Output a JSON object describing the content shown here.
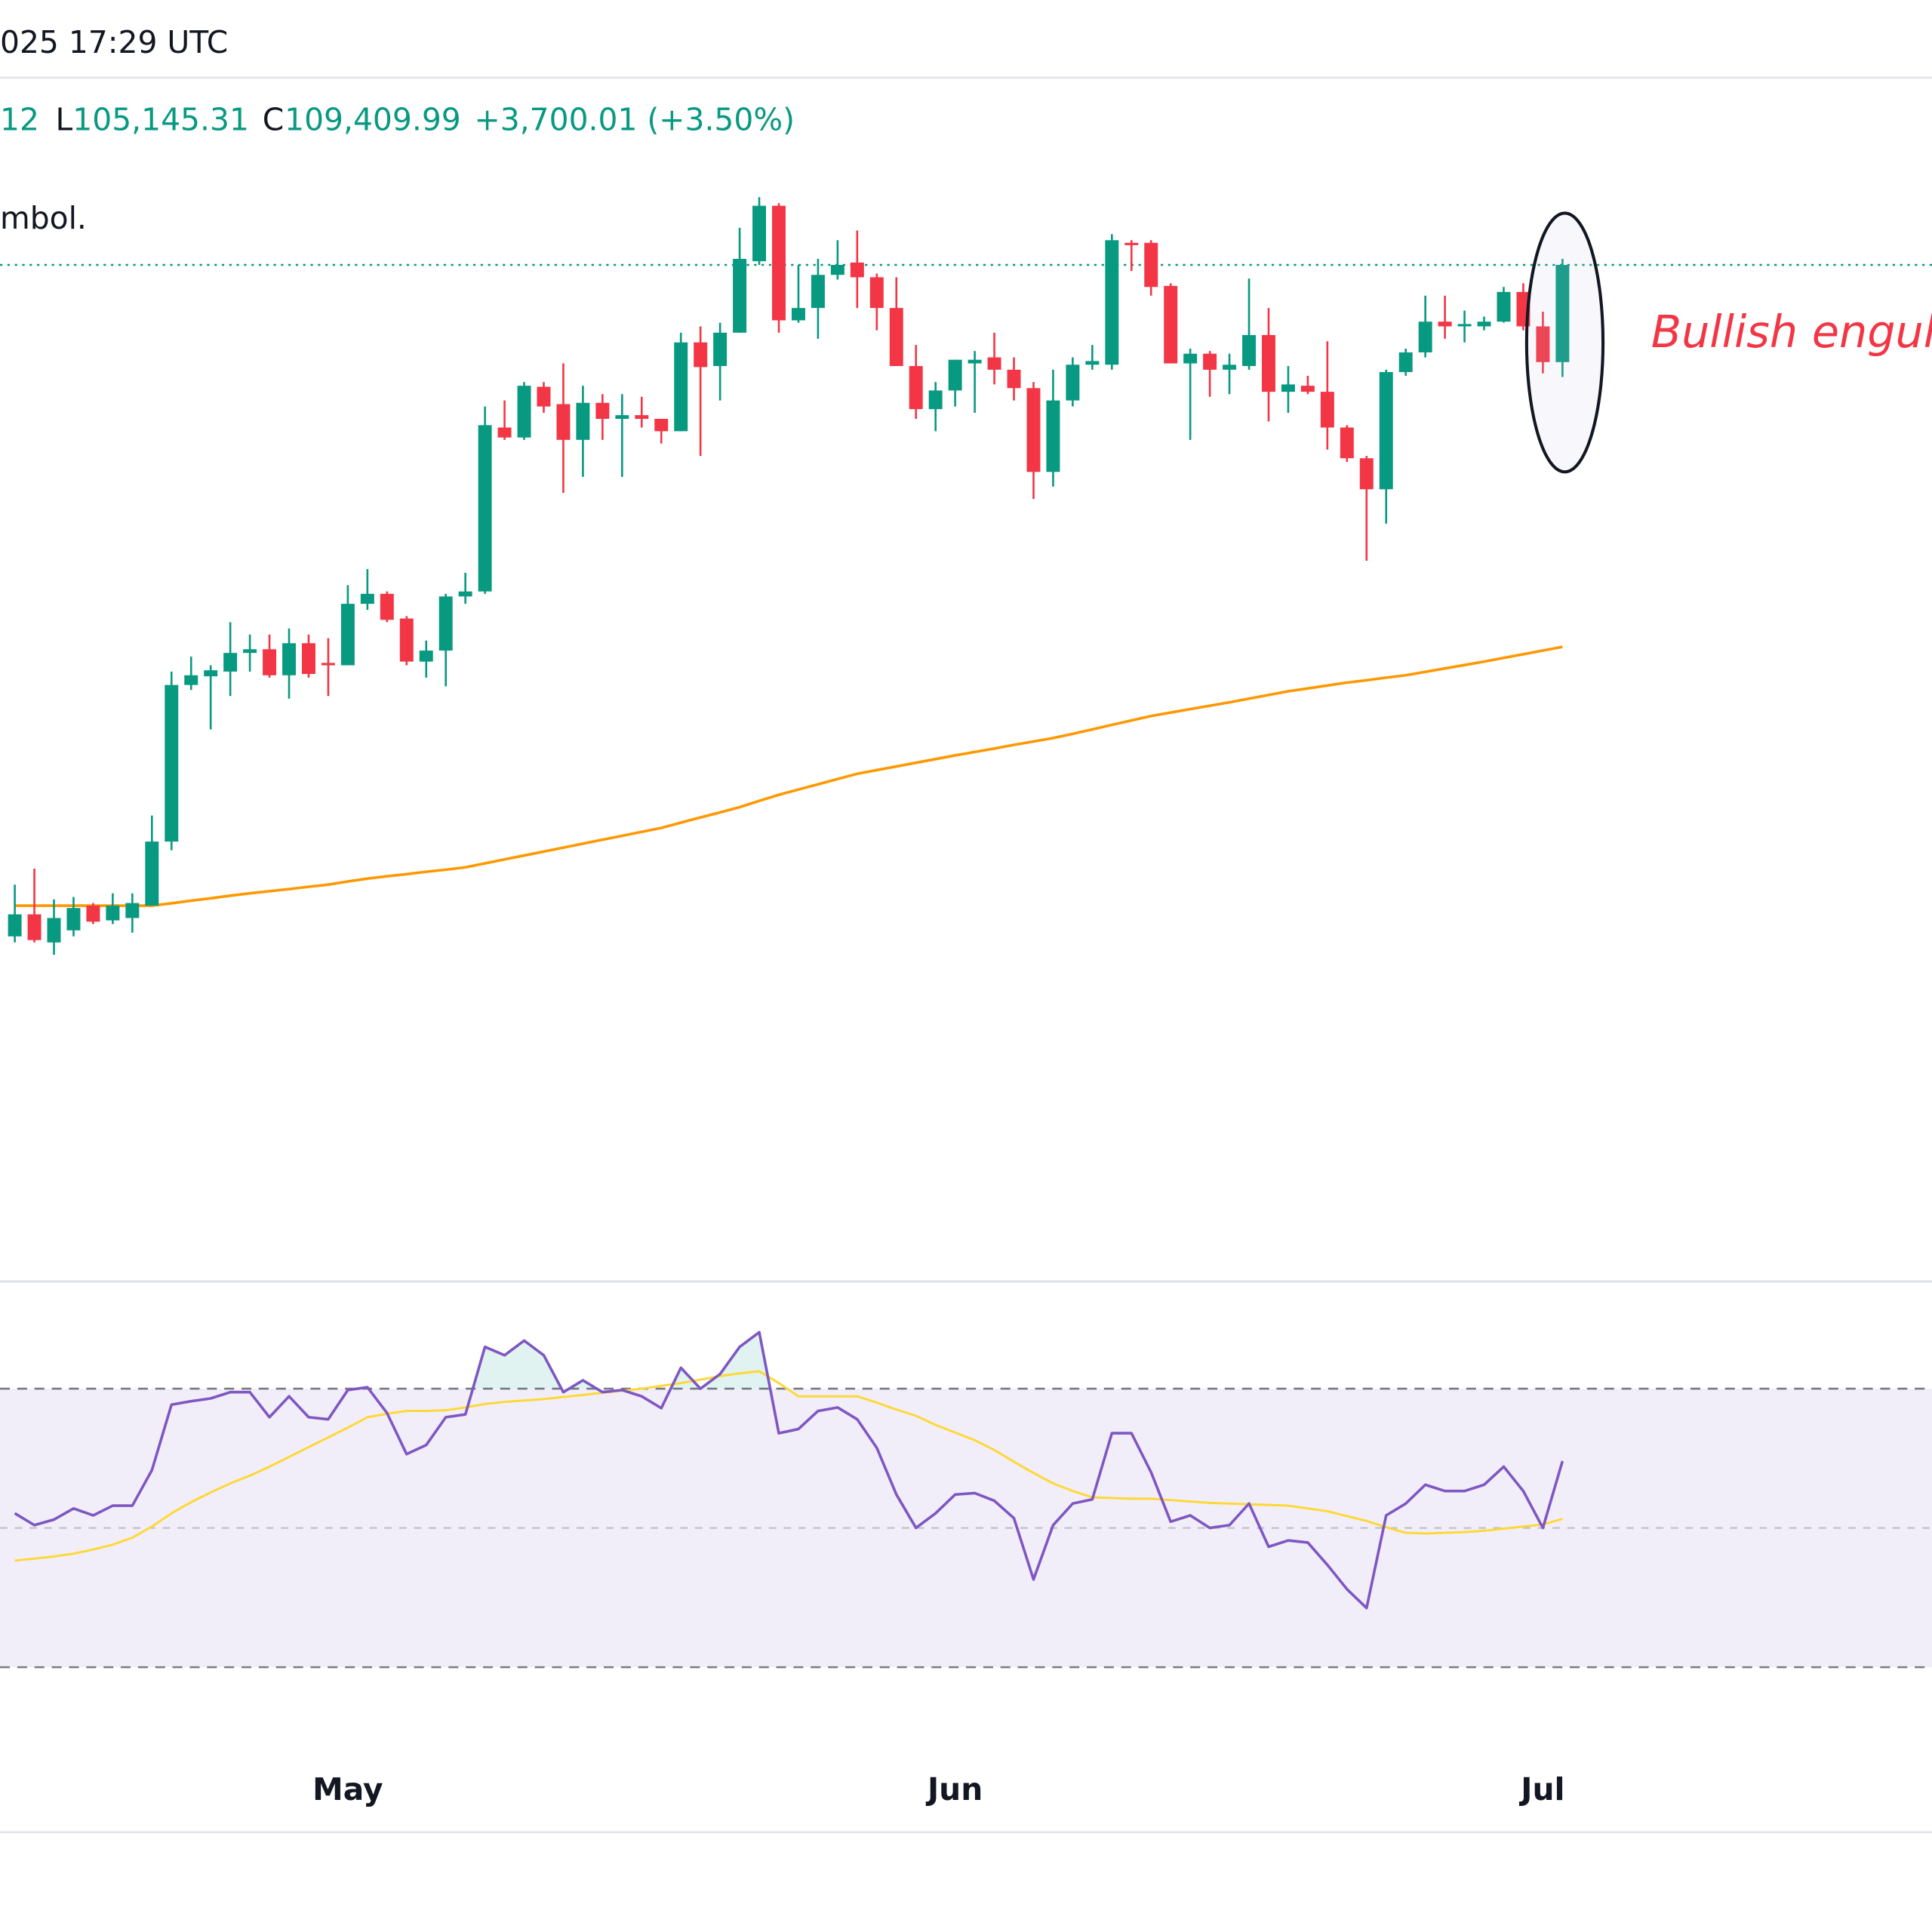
{
  "header": {
    "datetime": "025 17:29 UTC",
    "ohlc": {
      "high_fragment": "12",
      "low_label": "L",
      "low": "105,145.31",
      "close_label": "C",
      "close": "109,409.99",
      "change": "+3,700.01 (+3.50%)"
    },
    "notice": "mbol."
  },
  "chart_data": [
    {
      "type": "candlestick",
      "up_color": "#089981",
      "down_color": "#f23645",
      "ylim": [
        70717,
        119493
      ],
      "grid": false,
      "last_price_line": true,
      "open": [
        83850,
        84690,
        83620,
        84080,
        85020,
        84460,
        84550,
        85020,
        87460,
        93420,
        93750,
        93930,
        94640,
        94780,
        93790,
        95010,
        94260,
        94170,
        96510,
        96890,
        95950,
        94310,
        94730,
        96790,
        96980,
        103220,
        102840,
        104770,
        104110,
        102750,
        104160,
        103550,
        103690,
        103550,
        103080,
        106460,
        105560,
        106830,
        109550,
        111660,
        107300,
        107770,
        109030,
        109500,
        108940,
        107770,
        105560,
        103920,
        104630,
        105660,
        105890,
        105420,
        104720,
        101530,
        104250,
        105610,
        105610,
        110250,
        110250,
        108610,
        105660,
        106030,
        105420,
        105560,
        106740,
        104580,
        104810,
        104580,
        103220,
        102050,
        100870,
        105330,
        106080,
        107250,
        107070,
        107070,
        107250,
        108380,
        107070,
        105709.98
      ],
      "high": [
        85820,
        86430,
        85260,
        85350,
        85120,
        85490,
        85490,
        88450,
        93930,
        94500,
        94170,
        95810,
        95340,
        95340,
        95570,
        95340,
        95200,
        97220,
        97830,
        96980,
        96040,
        95110,
        96890,
        97690,
        104020,
        104250,
        104950,
        104950,
        105660,
        104810,
        104490,
        104490,
        104390,
        103550,
        106830,
        107070,
        107210,
        110820,
        111990,
        111760,
        109410,
        109640,
        110350,
        110720,
        109080,
        108940,
        106360,
        104950,
        105800,
        106130,
        106830,
        105890,
        104950,
        105420,
        105890,
        106360,
        110580,
        110350,
        110350,
        108710,
        106220,
        106130,
        106030,
        108890,
        107770,
        105560,
        105190,
        106500,
        103310,
        102140,
        105420,
        106220,
        108240,
        108240,
        107670,
        107440,
        108570,
        108710,
        107630,
        109640
      ],
      "low": [
        83620,
        83620,
        83150,
        83850,
        84320,
        84320,
        83990,
        85020,
        87130,
        93230,
        91730,
        93000,
        93930,
        93700,
        92900,
        93700,
        93000,
        94170,
        96280,
        95810,
        94170,
        93700,
        93370,
        96510,
        96890,
        102750,
        102750,
        103780,
        100730,
        101340,
        102750,
        101340,
        103220,
        102610,
        103080,
        102140,
        104250,
        106830,
        109410,
        106830,
        107210,
        106600,
        108850,
        107770,
        106920,
        105560,
        103550,
        103080,
        104020,
        103780,
        104860,
        104250,
        100500,
        100970,
        104020,
        105420,
        105420,
        109180,
        108240,
        105660,
        102750,
        104390,
        104490,
        105420,
        103450,
        103780,
        104490,
        102380,
        101910,
        98150,
        99560,
        105190,
        105890,
        106600,
        106460,
        106920,
        107210,
        106920,
        105280,
        105145.31
      ],
      "close": [
        84690,
        83710,
        84550,
        84930,
        84410,
        85020,
        85120,
        87460,
        93420,
        93790,
        93980,
        94640,
        94780,
        93790,
        95010,
        93840,
        94170,
        96510,
        96890,
        95900,
        94310,
        94730,
        96790,
        96980,
        103310,
        102840,
        104810,
        104020,
        102750,
        104160,
        103550,
        103690,
        103550,
        103080,
        106460,
        105520,
        106830,
        109640,
        111660,
        107300,
        107770,
        109030,
        109410,
        108940,
        107770,
        105560,
        103920,
        104630,
        105800,
        105800,
        105420,
        104720,
        101530,
        104250,
        105610,
        105750,
        110350,
        110160,
        108570,
        105660,
        106030,
        105420,
        105610,
        106740,
        104580,
        104860,
        104580,
        103220,
        102050,
        100870,
        105330,
        106080,
        107250,
        107070,
        107160,
        107250,
        108380,
        107070,
        105709.98,
        109409.99
      ],
      "overlays": [
        {
          "type": "line",
          "color": "#ff9800",
          "values": [
            85020,
            85020,
            85020,
            85020,
            85020,
            85020,
            85020,
            85020,
            85110,
            85210,
            85300,
            85400,
            85490,
            85570,
            85650,
            85740,
            85820,
            85940,
            86050,
            86140,
            86220,
            86310,
            86390,
            86480,
            86630,
            86780,
            86930,
            87080,
            87230,
            87380,
            87530,
            87680,
            87830,
            87980,
            88180,
            88380,
            88570,
            88770,
            89010,
            89240,
            89440,
            89640,
            89840,
            90040,
            90180,
            90320,
            90460,
            90600,
            90740,
            90870,
            91000,
            91140,
            91270,
            91400,
            91560,
            91730,
            91900,
            92070,
            92240,
            92370,
            92500,
            92630,
            92760,
            92900,
            93040,
            93180,
            93290,
            93400,
            93510,
            93600,
            93700,
            93790,
            93920,
            94050,
            94180,
            94310,
            94450,
            94590,
            94730,
            94870
          ]
        }
      ],
      "annotations": [
        {
          "text": "Bullish engulf",
          "color": "#f23645"
        }
      ]
    },
    {
      "type": "line",
      "ylim": [
        21.7,
        85.4
      ],
      "levels": [
        30,
        50,
        70
      ],
      "band_color": "#7e57c2",
      "overbought_fill": "#089981",
      "categories": [
        null,
        null,
        null,
        null,
        null,
        null,
        null,
        null,
        null,
        null,
        null,
        null,
        null,
        null,
        null,
        null,
        null,
        "May",
        null,
        null,
        null,
        null,
        null,
        null,
        null,
        null,
        null,
        null,
        null,
        null,
        null,
        null,
        null,
        null,
        null,
        null,
        null,
        null,
        null,
        null,
        null,
        null,
        null,
        null,
        null,
        null,
        null,
        null,
        "Jun",
        null,
        null,
        null,
        null,
        null,
        null,
        null,
        null,
        null,
        null,
        null,
        null,
        null,
        null,
        null,
        null,
        null,
        null,
        null,
        null,
        null,
        null,
        null,
        null,
        null,
        null,
        null,
        null,
        null,
        "Jul",
        null
      ],
      "series": [
        {
          "color": "#7e57c2",
          "values": [
            52.1,
            50.4,
            51.2,
            52.8,
            51.8,
            53.2,
            53.2,
            58.3,
            67.7,
            68.2,
            68.6,
            69.5,
            69.5,
            65.9,
            68.9,
            65.9,
            65.6,
            69.8,
            70.2,
            66.5,
            60.6,
            61.9,
            65.9,
            66.3,
            76.0,
            74.8,
            76.9,
            74.8,
            69.5,
            71.2,
            69.5,
            69.8,
            68.9,
            67.2,
            73.0,
            70.0,
            72.1,
            76.0,
            78.1,
            63.6,
            64.2,
            66.8,
            67.3,
            65.6,
            61.5,
            54.8,
            50.0,
            52.1,
            54.8,
            55.0,
            53.9,
            51.4,
            42.6,
            50.4,
            53.5,
            54.1,
            63.6,
            63.6,
            58.0,
            50.9,
            51.8,
            50.0,
            50.4,
            53.5,
            47.3,
            48.2,
            47.9,
            44.7,
            41.2,
            38.5,
            51.8,
            53.5,
            56.2,
            55.3,
            55.3,
            56.2,
            58.8,
            55.3,
            50.0,
            59.6
          ]
        },
        {
          "color": "#fdd835",
          "values": [
            45.3,
            45.6,
            45.9,
            46.3,
            46.9,
            47.6,
            48.6,
            50.2,
            52.1,
            53.7,
            55.1,
            56.4,
            57.5,
            58.8,
            60.2,
            61.6,
            63.0,
            64.4,
            65.9,
            66.4,
            66.8,
            66.8,
            66.9,
            67.3,
            67.8,
            68.1,
            68.3,
            68.5,
            68.8,
            69.1,
            69.4,
            69.7,
            70.0,
            70.4,
            70.8,
            71.3,
            71.8,
            72.2,
            72.5,
            70.8,
            68.9,
            68.9,
            68.9,
            68.9,
            68.0,
            67.0,
            66.1,
            64.8,
            63.7,
            62.6,
            61.2,
            59.5,
            57.9,
            56.4,
            55.3,
            54.4,
            54.3,
            54.2,
            54.2,
            54.0,
            53.8,
            53.6,
            53.5,
            53.4,
            53.3,
            53.2,
            52.8,
            52.4,
            51.7,
            51.0,
            50.1,
            49.3,
            49.2,
            49.3,
            49.4,
            49.6,
            49.9,
            50.2,
            50.5,
            51.3
          ]
        }
      ]
    }
  ]
}
